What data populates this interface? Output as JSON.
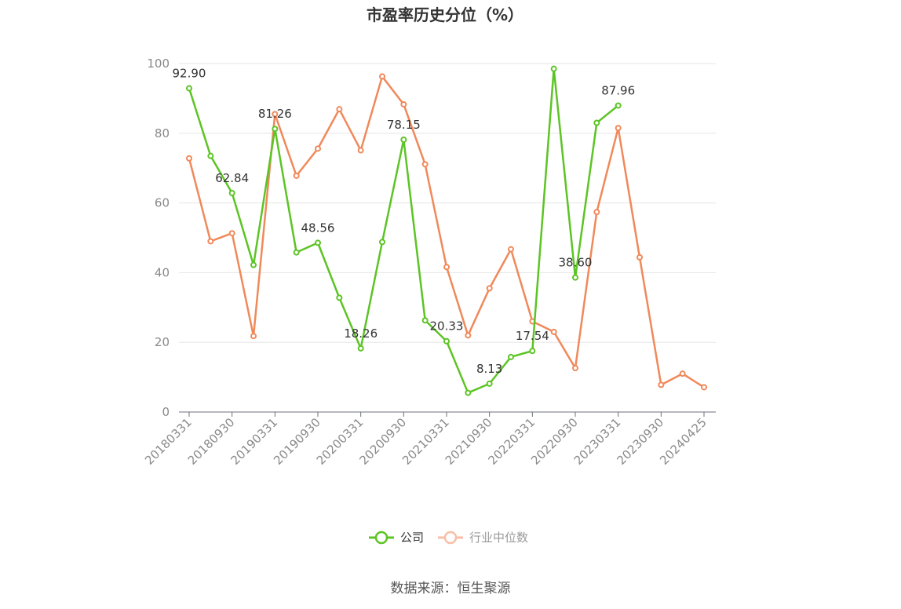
{
  "chart_data": {
    "type": "line",
    "title": "市盈率历史分位（%）",
    "xlabel": "",
    "ylabel": "",
    "ylim": [
      0,
      100
    ],
    "yticks": [
      0,
      20,
      40,
      60,
      80,
      100
    ],
    "grid": true,
    "legend_position": "bottom",
    "categories": [
      "20180331",
      "20180630",
      "20180930",
      "20181231",
      "20190331",
      "20190630",
      "20190930",
      "20191231",
      "20200331",
      "20200630",
      "20200930",
      "20201231",
      "20210331",
      "20210630",
      "20210930",
      "20211231",
      "20220331",
      "20220630",
      "20220930",
      "20221231",
      "20230331",
      "20230630",
      "20230930",
      "20231231",
      "20240425"
    ],
    "x_tick_labels": [
      "20180331",
      "20180930",
      "20190331",
      "20190930",
      "20200331",
      "20200930",
      "20210331",
      "20210930",
      "20220331",
      "20220930",
      "20230331",
      "20230930",
      "20240425"
    ],
    "series": [
      {
        "name": "公司",
        "color": "#5cc424",
        "values": [
          92.9,
          73.5,
          62.84,
          42.2,
          81.26,
          45.8,
          48.56,
          32.8,
          18.26,
          48.8,
          78.15,
          26.3,
          20.33,
          5.5,
          8.13,
          15.8,
          17.54,
          98.5,
          38.6,
          83.0,
          87.96,
          null,
          null,
          null,
          null
        ],
        "data_labels": [
          {
            "index": 0,
            "text": "92.90"
          },
          {
            "index": 2,
            "text": "62.84"
          },
          {
            "index": 4,
            "text": "81.26"
          },
          {
            "index": 6,
            "text": "48.56"
          },
          {
            "index": 8,
            "text": "18.26"
          },
          {
            "index": 10,
            "text": "78.15"
          },
          {
            "index": 12,
            "text": "20.33"
          },
          {
            "index": 14,
            "text": "8.13"
          },
          {
            "index": 16,
            "text": "17.54"
          },
          {
            "index": 18,
            "text": "38.60"
          },
          {
            "index": 20,
            "text": "87.96"
          }
        ]
      },
      {
        "name": "行业中位数",
        "color": "#f0895a",
        "values": [
          72.8,
          49.0,
          51.3,
          21.8,
          85.5,
          67.8,
          75.6,
          86.9,
          75.1,
          96.3,
          88.3,
          71.1,
          41.6,
          22.0,
          35.5,
          46.7,
          26.0,
          23.0,
          12.6,
          57.4,
          81.5,
          44.4,
          7.8,
          11.0,
          7.1
        ],
        "legend_color": "#f8bfa6"
      }
    ]
  },
  "footer": {
    "source": "数据来源：恒生聚源"
  }
}
